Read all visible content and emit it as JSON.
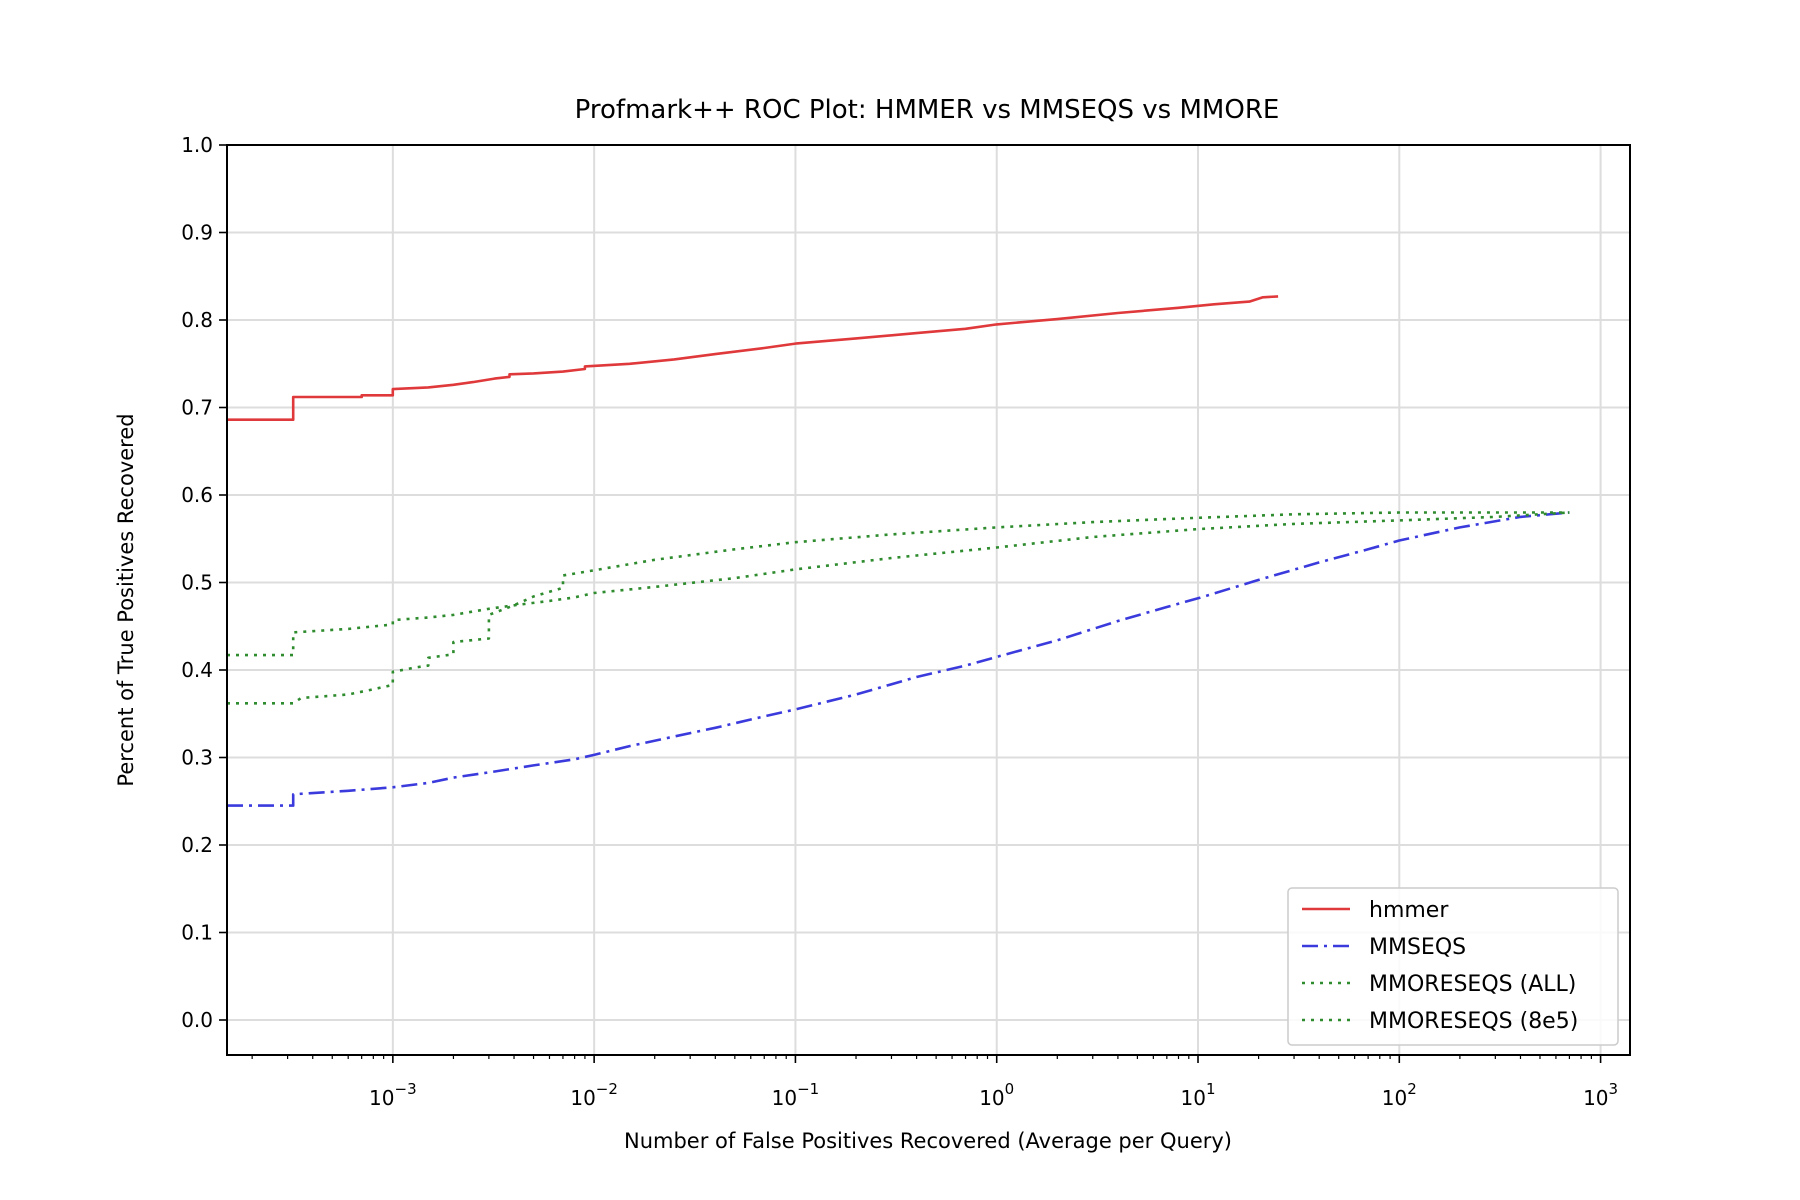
{
  "chart_data": {
    "type": "line",
    "title": "Profmark++ ROC Plot: HMMER vs MMSEQS vs MMORE",
    "xlabel": "Number of False Positives Recovered (Average per Query)",
    "ylabel": "Percent of True Positives Recovered",
    "xscale": "log",
    "xlim": [
      0.00015,
      1400
    ],
    "ylim": [
      -0.04,
      1.0
    ],
    "xticks": [
      {
        "value": 0.001,
        "base": "10",
        "exp": "−3"
      },
      {
        "value": 0.01,
        "base": "10",
        "exp": "−2"
      },
      {
        "value": 0.1,
        "base": "10",
        "exp": "−1"
      },
      {
        "value": 1,
        "base": "10",
        "exp": "0"
      },
      {
        "value": 10,
        "base": "10",
        "exp": "1"
      },
      {
        "value": 100,
        "base": "10",
        "exp": "2"
      },
      {
        "value": 1000,
        "base": "10",
        "exp": "3"
      }
    ],
    "yticks": [
      "0.0",
      "0.1",
      "0.2",
      "0.3",
      "0.4",
      "0.5",
      "0.6",
      "0.7",
      "0.8",
      "0.9",
      "1.0"
    ],
    "grid": true,
    "legend_position": "lower-right",
    "series": [
      {
        "name": "hmmer",
        "color": "#e0393b",
        "dash": "solid",
        "x": [
          0.00015,
          0.00032,
          0.00032,
          0.0007,
          0.0007,
          0.001,
          0.001,
          0.0015,
          0.002,
          0.0025,
          0.0032,
          0.0038,
          0.0038,
          0.005,
          0.007,
          0.009,
          0.009,
          0.015,
          0.025,
          0.04,
          0.07,
          0.1,
          0.2,
          0.4,
          0.7,
          1.0,
          2.0,
          4.0,
          8.0,
          12.0,
          18.0,
          21.0,
          25.0
        ],
        "y": [
          0.686,
          0.686,
          0.712,
          0.712,
          0.714,
          0.714,
          0.721,
          0.723,
          0.726,
          0.729,
          0.733,
          0.735,
          0.738,
          0.739,
          0.741,
          0.744,
          0.747,
          0.75,
          0.755,
          0.761,
          0.768,
          0.773,
          0.779,
          0.785,
          0.79,
          0.795,
          0.801,
          0.808,
          0.814,
          0.818,
          0.821,
          0.826,
          0.827
        ]
      },
      {
        "name": "MMSEQS",
        "color": "#3b3bdd",
        "dash": "dashdot",
        "x": [
          0.00015,
          0.00032,
          0.00032,
          0.0006,
          0.001,
          0.0015,
          0.002,
          0.003,
          0.005,
          0.008,
          0.01,
          0.015,
          0.025,
          0.04,
          0.07,
          0.1,
          0.2,
          0.4,
          0.7,
          1.0,
          2.0,
          4.0,
          7.0,
          10.0,
          20.0,
          40.0,
          70.0,
          100.0,
          200.0,
          400.0,
          700.0
        ],
        "y": [
          0.245,
          0.245,
          0.258,
          0.262,
          0.266,
          0.271,
          0.277,
          0.283,
          0.291,
          0.298,
          0.303,
          0.313,
          0.324,
          0.334,
          0.347,
          0.355,
          0.372,
          0.392,
          0.405,
          0.415,
          0.434,
          0.456,
          0.472,
          0.482,
          0.503,
          0.523,
          0.538,
          0.548,
          0.563,
          0.575,
          0.58
        ]
      },
      {
        "name": "MMORESEQS (ALL)",
        "color": "#2e8b2e",
        "dash": "dotted",
        "x": [
          0.00015,
          0.00032,
          0.00032,
          0.0006,
          0.001,
          0.001,
          0.0015,
          0.002,
          0.003,
          0.004,
          0.006,
          0.008,
          0.01,
          0.02,
          0.05,
          0.1,
          0.3,
          1.0,
          3.0,
          10.0,
          30.0,
          100.0,
          300.0,
          700.0
        ],
        "y": [
          0.417,
          0.417,
          0.443,
          0.447,
          0.452,
          0.457,
          0.46,
          0.463,
          0.47,
          0.474,
          0.479,
          0.483,
          0.488,
          0.495,
          0.505,
          0.515,
          0.528,
          0.54,
          0.552,
          0.561,
          0.567,
          0.571,
          0.575,
          0.58
        ]
      },
      {
        "name": "MMORESEQS (8e5)",
        "color": "#2e8b2e",
        "dash": "dotted",
        "x": [
          0.00015,
          0.00032,
          0.00035,
          0.0006,
          0.0008,
          0.001,
          0.001,
          0.0013,
          0.0015,
          0.0015,
          0.002,
          0.002,
          0.003,
          0.003,
          0.004,
          0.005,
          0.007,
          0.007,
          0.01,
          0.02,
          0.05,
          0.1,
          0.3,
          1.0,
          3.0,
          10.0,
          30.0,
          100.0,
          300.0,
          700.0
        ],
        "y": [
          0.362,
          0.362,
          0.368,
          0.372,
          0.378,
          0.383,
          0.398,
          0.403,
          0.405,
          0.414,
          0.418,
          0.432,
          0.436,
          0.463,
          0.474,
          0.484,
          0.494,
          0.508,
          0.514,
          0.526,
          0.538,
          0.546,
          0.555,
          0.563,
          0.569,
          0.574,
          0.578,
          0.58,
          0.58,
          0.58
        ]
      }
    ]
  }
}
